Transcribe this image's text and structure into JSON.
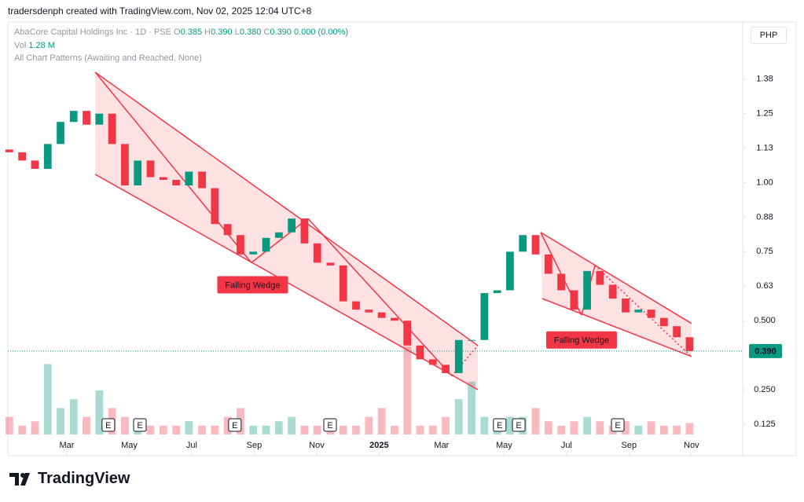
{
  "header": "tradersdenph created with TradingView.com, Nov 02, 2025 12:04 UTC+8",
  "legend": {
    "symbol": "AbaCore Capital Holdings Inc · 1D · PSE",
    "o_label": "O",
    "o": "0.385",
    "h_label": "H",
    "h": "0.390",
    "l_label": "L",
    "l": "0.380",
    "c_label": "C",
    "c": "0.390",
    "change": "0.000 (0.00%)",
    "vol_label": "Vol",
    "vol": "1.28 M",
    "indicator": "All Chart Patterns (Awaiting and Reached, None)"
  },
  "currency": "PHP",
  "brand": "TradingView",
  "chart_data": {
    "type": "candlestick",
    "x": [
      0.16,
      0.57,
      0.98,
      1.39,
      1.8,
      2.22,
      2.63,
      3.04,
      3.45,
      3.86,
      4.27,
      4.68,
      5.09,
      5.5,
      5.91,
      6.33,
      6.74,
      7.15,
      7.56,
      7.97,
      8.38,
      8.79,
      9.2,
      9.61,
      10.02,
      10.44,
      10.85,
      11.26,
      11.67,
      12.08,
      12.49,
      12.9,
      13.31,
      13.72,
      14.13,
      14.55,
      14.96,
      15.37,
      15.78,
      16.19,
      16.6,
      17.01,
      17.42,
      17.83,
      18.24,
      18.66,
      19.07,
      19.48,
      19.89,
      20.3,
      20.71,
      21.12,
      21.53,
      21.94
    ],
    "open": [
      1.12,
      1.11,
      1.08,
      1.05,
      1.14,
      1.22,
      1.26,
      1.21,
      1.25,
      1.14,
      0.99,
      1.08,
      1.02,
      1.01,
      0.99,
      1.04,
      0.98,
      0.85,
      0.81,
      0.74,
      0.75,
      0.8,
      0.82,
      0.87,
      0.78,
      0.71,
      0.7,
      0.57,
      0.54,
      0.53,
      0.51,
      0.5,
      0.41,
      0.36,
      0.34,
      0.31,
      0.43,
      0.43,
      0.6,
      0.61,
      0.75,
      0.81,
      0.74,
      0.67,
      0.61,
      0.54,
      0.68,
      0.63,
      0.58,
      0.53,
      0.54,
      0.51,
      0.48,
      0.44
    ],
    "close": [
      1.11,
      1.08,
      1.05,
      1.14,
      1.22,
      1.26,
      1.21,
      1.25,
      1.14,
      0.99,
      1.08,
      1.02,
      1.01,
      0.99,
      1.04,
      0.98,
      0.85,
      0.81,
      0.74,
      0.75,
      0.8,
      0.82,
      0.87,
      0.78,
      0.71,
      0.7,
      0.57,
      0.54,
      0.53,
      0.51,
      0.5,
      0.41,
      0.36,
      0.34,
      0.31,
      0.43,
      0.43,
      0.6,
      0.61,
      0.75,
      0.81,
      0.74,
      0.67,
      0.61,
      0.54,
      0.68,
      0.63,
      0.58,
      0.53,
      0.54,
      0.51,
      0.48,
      0.44,
      0.39
    ],
    "volume": [
      2,
      1,
      1.5,
      8,
      3,
      4,
      2,
      5,
      3,
      2,
      1.5,
      1,
      1,
      1,
      1.5,
      1,
      1,
      2,
      3,
      1,
      1,
      1.5,
      2,
      1,
      1,
      1.5,
      1,
      1,
      2,
      3,
      1,
      10,
      1,
      1,
      2,
      4,
      6,
      2,
      1.5,
      2,
      2,
      3,
      1.5,
      1,
      1.5,
      2,
      1.5,
      1,
      1.5,
      1,
      1.5,
      1,
      1,
      1.3
    ],
    "up_color": "#089981",
    "down_color": "#f23645",
    "xlim": [
      0.113,
      23.64
    ],
    "xticks": [
      {
        "value": 2,
        "label": "Mar"
      },
      {
        "value": 4,
        "label": "May"
      },
      {
        "value": 6,
        "label": "Jul"
      },
      {
        "value": 8,
        "label": "Sep"
      },
      {
        "value": 10,
        "label": "Nov"
      },
      {
        "value": 12,
        "label": "2025"
      },
      {
        "value": 14,
        "label": "Mar"
      },
      {
        "value": 16,
        "label": "May"
      },
      {
        "value": 18,
        "label": "Jul"
      },
      {
        "value": 20,
        "label": "Sep"
      },
      {
        "value": 22,
        "label": "Nov"
      }
    ],
    "ylim": [
      0.011,
      1.582
    ],
    "yticks": [
      0.125,
      {
        "value": 0.25,
        "label": "0.250"
      },
      {
        "value": 0.5,
        "label": "0.500"
      },
      {
        "value": 0.625,
        "label": "0.63"
      },
      0.75,
      {
        "value": 0.875,
        "label": "0.88"
      },
      {
        "value": 1,
        "label": "1.00"
      },
      {
        "value": 1.125,
        "label": "1.13"
      },
      1.25,
      {
        "value": 1.375,
        "label": "1.38"
      }
    ],
    "grid": false,
    "last_price": {
      "value": 0.39,
      "label": "0.390"
    },
    "patterns": [
      {
        "label": "Falling Wedge",
        "label_at": [
          7.95,
          0.63
        ],
        "upper": [
          [
            2.91,
            1.4
          ],
          [
            15.16,
            0.41
          ]
        ],
        "lower": [
          [
            2.91,
            1.03
          ],
          [
            15.16,
            0.25
          ]
        ],
        "zigzag": [
          [
            2.91,
            1.4
          ],
          [
            7.91,
            0.71
          ],
          [
            9.72,
            0.87
          ],
          [
            14.33,
            0.3
          ],
          [
            15.16,
            0.41
          ]
        ],
        "dotted_from": 4
      },
      {
        "label": "Falling Wedge",
        "label_at": [
          18.48,
          0.43
        ],
        "upper": [
          [
            17.17,
            0.82
          ],
          [
            22.0,
            0.49
          ]
        ],
        "lower": [
          [
            17.22,
            0.58
          ],
          [
            22.0,
            0.37
          ]
        ],
        "zigzag": [
          [
            17.17,
            0.82
          ],
          [
            18.48,
            0.52
          ],
          [
            18.91,
            0.7
          ],
          [
            21.95,
            0.375
          ]
        ],
        "dotted_from": 3
      }
    ],
    "earnings": {
      "label": "E",
      "x": [
        3.33,
        4.34,
        7.38,
        10.43,
        15.86,
        16.47,
        19.64
      ]
    }
  }
}
